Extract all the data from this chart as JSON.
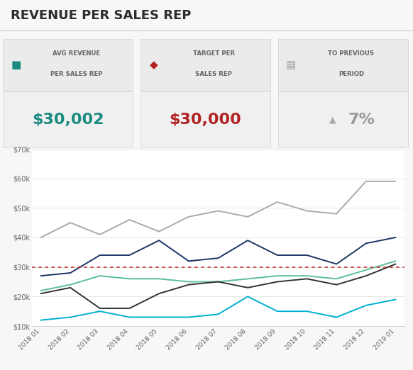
{
  "title": "REVENUE PER SALES REP",
  "kpi1_label1": "AVG REVENUE",
  "kpi1_label2": "PER SALES REP",
  "kpi1_value": "$30,002",
  "kpi1_color": "#1a8a80",
  "kpi2_label1": "TARGET PER",
  "kpi2_label2": "SALES REP",
  "kpi2_value": "$30,000",
  "kpi2_color": "#b22222",
  "kpi3_label1": "TO PREVIOUS",
  "kpi3_label2": "PERIOD",
  "kpi3_value": " 7%",
  "kpi3_color": "#999999",
  "x_labels": [
    "2018 01",
    "2018 02",
    "2018 03",
    "2018 04",
    "2018 05",
    "2018 06",
    "2018 07",
    "2018 08",
    "2018 09",
    "2018 10",
    "2018 11",
    "2018 12",
    "2019 01"
  ],
  "series": {
    "1": [
      40000,
      45000,
      41000,
      46000,
      42000,
      47000,
      49000,
      47000,
      52000,
      49000,
      48000,
      59000,
      59000
    ],
    "2": [
      27000,
      28000,
      34000,
      34000,
      39000,
      32000,
      33000,
      39000,
      34000,
      34000,
      31000,
      38000,
      40000
    ],
    "3": [
      22000,
      24000,
      27000,
      26000,
      26000,
      25000,
      25000,
      26000,
      27000,
      27000,
      26000,
      29000,
      32000
    ],
    "4": [
      21000,
      23000,
      16000,
      16000,
      21000,
      24000,
      25000,
      23000,
      25000,
      26000,
      24000,
      27000,
      31000
    ],
    "5": [
      12000,
      13000,
      15000,
      13000,
      13000,
      13000,
      14000,
      20000,
      15000,
      15000,
      13000,
      17000,
      19000
    ]
  },
  "series_colors": {
    "1": "#aaaaaa",
    "2": "#1c3566",
    "3": "#5abf95",
    "4": "#333333",
    "5": "#00b0d0"
  },
  "target_value": 30000,
  "target_color": "#cc2222",
  "ylim": [
    10000,
    70000
  ],
  "yticks": [
    10000,
    20000,
    30000,
    40000,
    50000,
    60000,
    70000
  ],
  "ytick_labels": [
    "$10k",
    "$20k",
    "$30k",
    "$40k",
    "$50k",
    "$60k",
    "$70k"
  ],
  "bg_color": "#f7f7f7",
  "kpi_header_bg": "#ebebeb",
  "kpi_value_bg": "#f0f0f0",
  "plot_bg": "#ffffff"
}
